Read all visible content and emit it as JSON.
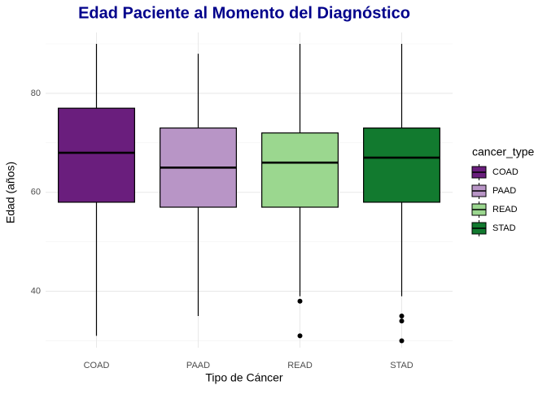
{
  "chart_data": {
    "type": "box",
    "title": "Edad Paciente al Momento del Diagnóstico",
    "x_label": "Tipo de Cáncer",
    "y_label": "Edad (años)",
    "categories": [
      "COAD",
      "PAAD",
      "READ",
      "STAD"
    ],
    "legend_title": "cancer_type",
    "legend_position": "right",
    "grid": true,
    "ylim": [
      28.6,
      92.3
    ],
    "yticks": [
      40,
      60,
      80
    ],
    "yticks_minor": [
      30,
      50,
      70,
      90
    ],
    "series": [
      {
        "name": "COAD",
        "color": "#6a1e7d",
        "whisker_low": 31,
        "q1": 58,
        "median": 68,
        "q3": 77,
        "whisker_high": 90,
        "outliers": []
      },
      {
        "name": "PAAD",
        "color": "#b895c6",
        "whisker_low": 35,
        "q1": 57,
        "median": 65,
        "q3": 73,
        "whisker_high": 88,
        "outliers": []
      },
      {
        "name": "READ",
        "color": "#9bd78f",
        "whisker_low": 39,
        "q1": 57,
        "median": 66,
        "q3": 72,
        "whisker_high": 90,
        "outliers": [
          38,
          31
        ]
      },
      {
        "name": "STAD",
        "color": "#127a2f",
        "whisker_low": 39,
        "q1": 58,
        "median": 67,
        "q3": 73,
        "whisker_high": 90,
        "outliers": [
          35,
          34,
          30
        ]
      }
    ]
  }
}
